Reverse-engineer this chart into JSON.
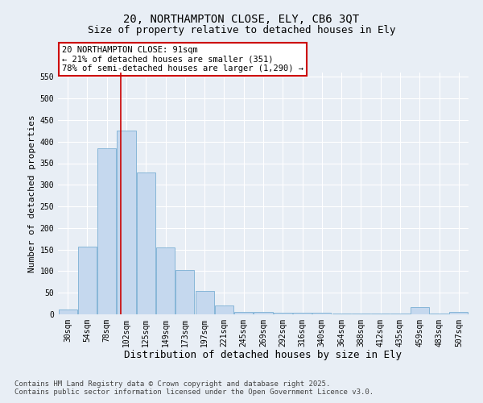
{
  "title1": "20, NORTHAMPTON CLOSE, ELY, CB6 3QT",
  "title2": "Size of property relative to detached houses in Ely",
  "xlabel": "Distribution of detached houses by size in Ely",
  "ylabel": "Number of detached properties",
  "categories": [
    "30sqm",
    "54sqm",
    "78sqm",
    "102sqm",
    "125sqm",
    "149sqm",
    "173sqm",
    "197sqm",
    "221sqm",
    "245sqm",
    "269sqm",
    "292sqm",
    "316sqm",
    "340sqm",
    "364sqm",
    "388sqm",
    "412sqm",
    "435sqm",
    "459sqm",
    "483sqm",
    "507sqm"
  ],
  "values": [
    12,
    157,
    385,
    425,
    328,
    155,
    103,
    55,
    20,
    5,
    5,
    3,
    3,
    3,
    2,
    2,
    1,
    1,
    17,
    1,
    5
  ],
  "bar_color": "#c5d8ee",
  "bar_edge_color": "#7bafd4",
  "vline_color": "#cc0000",
  "vline_pos": 2.72,
  "annotation_line1": "20 NORTHAMPTON CLOSE: 91sqm",
  "annotation_line2": "← 21% of detached houses are smaller (351)",
  "annotation_line3": "78% of semi-detached houses are larger (1,290) →",
  "annotation_box_color": "#cc0000",
  "annotation_bg": "#ffffff",
  "ylim": [
    0,
    560
  ],
  "yticks": [
    0,
    50,
    100,
    150,
    200,
    250,
    300,
    350,
    400,
    450,
    500,
    550
  ],
  "bg_color": "#e8eef5",
  "footnote1": "Contains HM Land Registry data © Crown copyright and database right 2025.",
  "footnote2": "Contains public sector information licensed under the Open Government Licence v3.0.",
  "title1_fontsize": 10,
  "title2_fontsize": 9,
  "xlabel_fontsize": 9,
  "ylabel_fontsize": 8,
  "annotation_fontsize": 7.5,
  "footnote_fontsize": 6.5,
  "tick_fontsize": 7
}
